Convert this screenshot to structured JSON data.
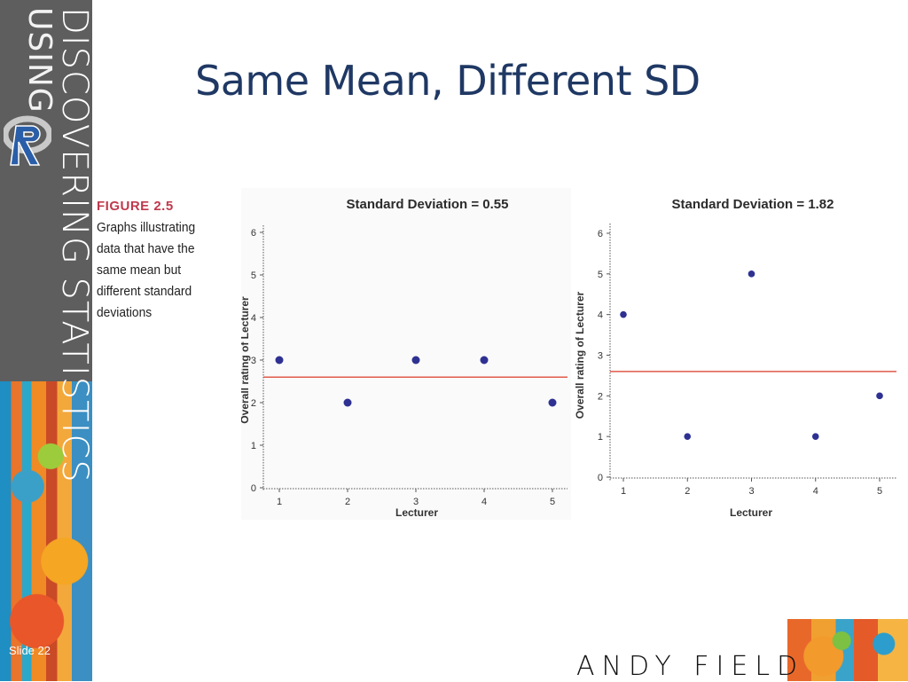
{
  "slide": {
    "title": "Same Mean, Different SD",
    "slide_number": "Slide 22",
    "author": "ANDY FIELD"
  },
  "banner": {
    "line1": "DISCOVERING STATISTICS",
    "line2": "USING",
    "logo_icon": "r-logo-icon"
  },
  "caption": {
    "label": "FIGURE 2.5",
    "text": "Graphs illustrating data that have the same mean but different standard deviations"
  },
  "colors": {
    "title": "#1f3864",
    "points": "#2e3192",
    "mean_line": "#e05a4a",
    "caption_label": "#c0394d"
  },
  "chart_data": [
    {
      "type": "scatter",
      "title": "Standard Deviation = 0.55",
      "xlabel": "Lecturer",
      "ylabel": "Overall rating of Lecturer",
      "x": [
        1,
        2,
        3,
        4,
        5
      ],
      "y": [
        3,
        2,
        3,
        3,
        2
      ],
      "mean_line": 2.6,
      "ylim": [
        0,
        6
      ],
      "xticks": [
        "1",
        "2",
        "3",
        "4",
        "5"
      ],
      "yticks": [
        "0",
        "1",
        "2",
        "3",
        "4",
        "5",
        "6"
      ]
    },
    {
      "type": "scatter",
      "title": "Standard Deviation = 1.82",
      "xlabel": "Lecturer",
      "ylabel": "Overall rating of Lecturer",
      "x": [
        1,
        2,
        3,
        4,
        5
      ],
      "y": [
        4,
        1,
        5,
        1,
        2
      ],
      "mean_line": 2.6,
      "ylim": [
        0,
        6
      ],
      "xticks": [
        "1",
        "2",
        "3",
        "4",
        "5"
      ],
      "yticks": [
        "0",
        "1",
        "2",
        "3",
        "4",
        "5",
        "6"
      ]
    }
  ]
}
